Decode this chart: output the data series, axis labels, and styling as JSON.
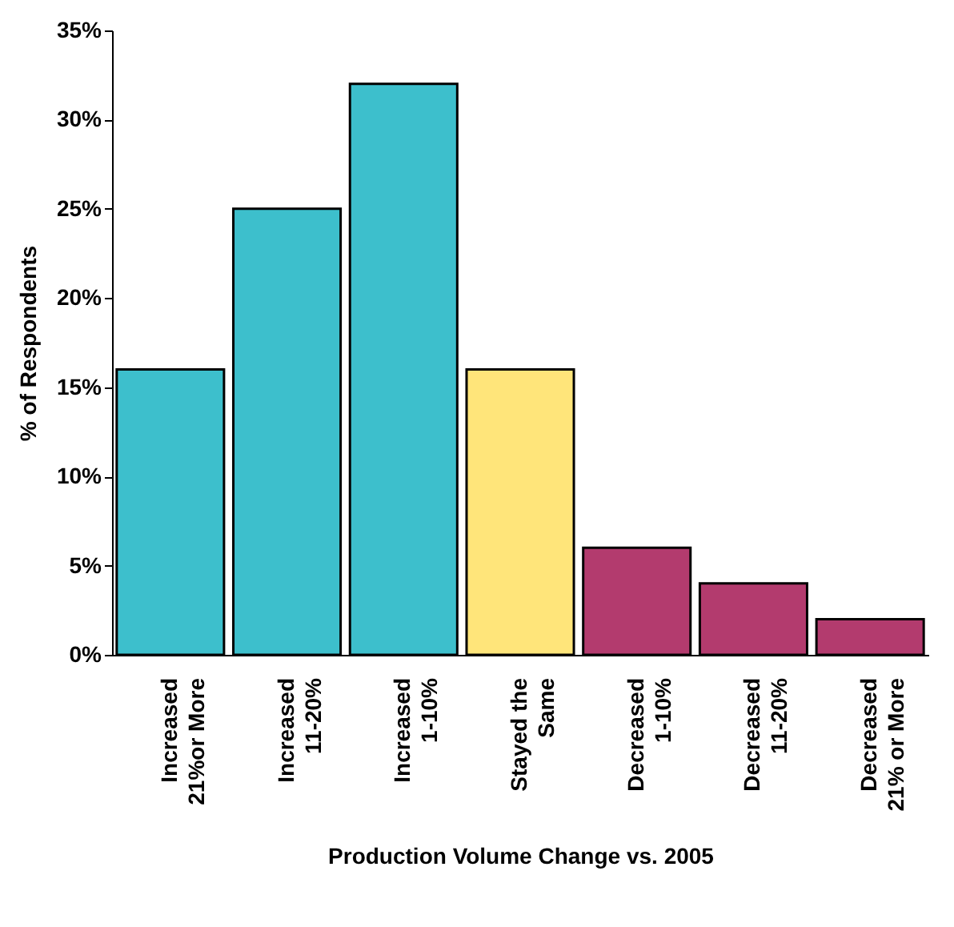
{
  "chart_data": {
    "type": "bar",
    "xlabel": "Production Volume Change vs. 2005",
    "ylabel": "% of Respondents",
    "categories": [
      "Increased\n21%or More",
      "Increased\n11-20%",
      "Increased\n1-10%",
      "Stayed the\nSame",
      "Decreased\n1-10%",
      "Decreased\n11-20%",
      "Decreased\n21% or More"
    ],
    "values": [
      16,
      25,
      32,
      16,
      6,
      4,
      2
    ],
    "colors": [
      "#3dbfcc",
      "#3dbfcc",
      "#3dbfcc",
      "#ffe57a",
      "#b33b6e",
      "#b33b6e",
      "#b33b6e"
    ],
    "ylim": [
      0,
      35
    ],
    "yticks": [
      {
        "value": 0,
        "label": "0%"
      },
      {
        "value": 5,
        "label": "5%"
      },
      {
        "value": 10,
        "label": "10%"
      },
      {
        "value": 15,
        "label": "15%"
      },
      {
        "value": 20,
        "label": "20%"
      },
      {
        "value": 25,
        "label": "25%"
      },
      {
        "value": 30,
        "label": "30%"
      },
      {
        "value": 35,
        "label": "35%"
      }
    ],
    "grid": false
  }
}
